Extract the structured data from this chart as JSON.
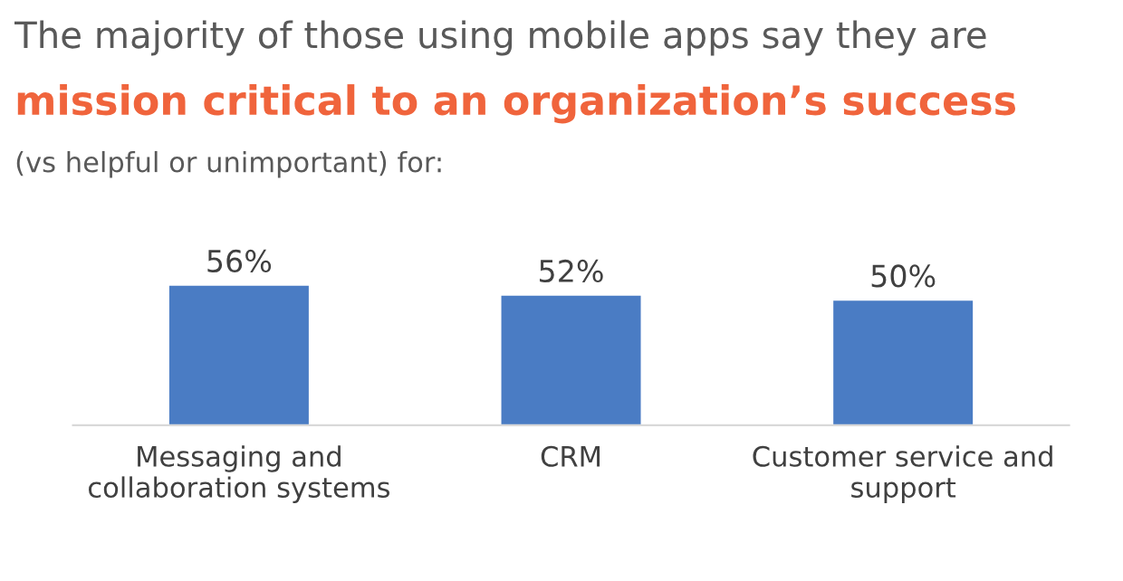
{
  "chart_data": {
    "type": "bar",
    "title": "The majority of those using mobile apps say they are",
    "subtitle": "mission critical to an organization’s success",
    "annotations": [
      "(vs helpful or unimportant) for:"
    ],
    "categories": [
      "Messaging and\ncollaboration systems",
      "CRM",
      "Customer service and\nsupport"
    ],
    "values": [
      56,
      52,
      50
    ],
    "value_labels": [
      "56%",
      "52%",
      "50%"
    ],
    "color": "#4a7cc4",
    "grid": false,
    "legend": false
  }
}
